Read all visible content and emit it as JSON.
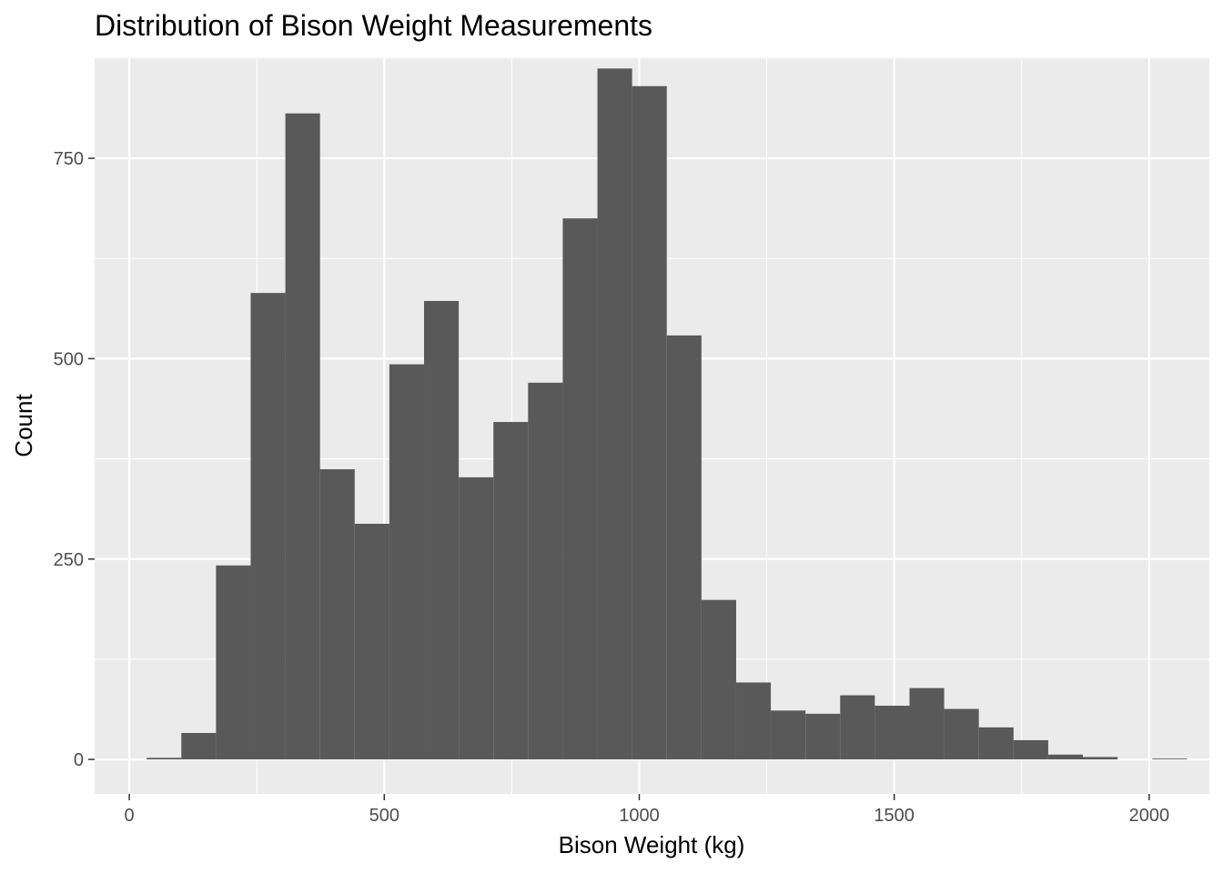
{
  "chart_data": {
    "type": "bar",
    "title": "Distribution of Bison Weight Measurements",
    "xlabel": "Bison Weight (kg)",
    "ylabel": "Count",
    "xlim": [
      -68,
      2118
    ],
    "ylim": [
      -43,
      876
    ],
    "x_ticks": [
      "0",
      "500",
      "1000",
      "1500",
      "2000"
    ],
    "x_tick_values": [
      0,
      500,
      1000,
      1500,
      2000
    ],
    "y_ticks": [
      "0",
      "250",
      "500",
      "750"
    ],
    "y_tick_values": [
      0,
      250,
      500,
      750
    ],
    "bin_width": 68,
    "bins": [
      {
        "x_start": 34,
        "x_end": 102,
        "count": 2
      },
      {
        "x_start": 102,
        "x_end": 170,
        "count": 33
      },
      {
        "x_start": 170,
        "x_end": 238,
        "count": 242
      },
      {
        "x_start": 238,
        "x_end": 306,
        "count": 582
      },
      {
        "x_start": 306,
        "x_end": 374,
        "count": 806
      },
      {
        "x_start": 374,
        "x_end": 442,
        "count": 362
      },
      {
        "x_start": 442,
        "x_end": 510,
        "count": 294
      },
      {
        "x_start": 510,
        "x_end": 578,
        "count": 493
      },
      {
        "x_start": 578,
        "x_end": 646,
        "count": 572
      },
      {
        "x_start": 646,
        "x_end": 714,
        "count": 352
      },
      {
        "x_start": 714,
        "x_end": 782,
        "count": 421
      },
      {
        "x_start": 782,
        "x_end": 850,
        "count": 470
      },
      {
        "x_start": 850,
        "x_end": 918,
        "count": 675
      },
      {
        "x_start": 918,
        "x_end": 986,
        "count": 862
      },
      {
        "x_start": 986,
        "x_end": 1054,
        "count": 840
      },
      {
        "x_start": 1054,
        "x_end": 1122,
        "count": 529
      },
      {
        "x_start": 1122,
        "x_end": 1190,
        "count": 199
      },
      {
        "x_start": 1190,
        "x_end": 1258,
        "count": 96
      },
      {
        "x_start": 1258,
        "x_end": 1326,
        "count": 61
      },
      {
        "x_start": 1326,
        "x_end": 1394,
        "count": 57
      },
      {
        "x_start": 1394,
        "x_end": 1462,
        "count": 80
      },
      {
        "x_start": 1462,
        "x_end": 1530,
        "count": 67
      },
      {
        "x_start": 1530,
        "x_end": 1598,
        "count": 89
      },
      {
        "x_start": 1598,
        "x_end": 1666,
        "count": 63
      },
      {
        "x_start": 1666,
        "x_end": 1734,
        "count": 40
      },
      {
        "x_start": 1734,
        "x_end": 1802,
        "count": 24
      },
      {
        "x_start": 1802,
        "x_end": 1870,
        "count": 6
      },
      {
        "x_start": 1870,
        "x_end": 1938,
        "count": 3
      },
      {
        "x_start": 1938,
        "x_end": 2006,
        "count": 0
      },
      {
        "x_start": 2006,
        "x_end": 2074,
        "count": 1
      }
    ],
    "grid": true,
    "legend": "none",
    "colors": {
      "bar": "#595959",
      "panel": "#ebebeb",
      "grid": "#ffffff",
      "tick_label": "#4d4d4d",
      "tick_mark": "#333333"
    }
  }
}
